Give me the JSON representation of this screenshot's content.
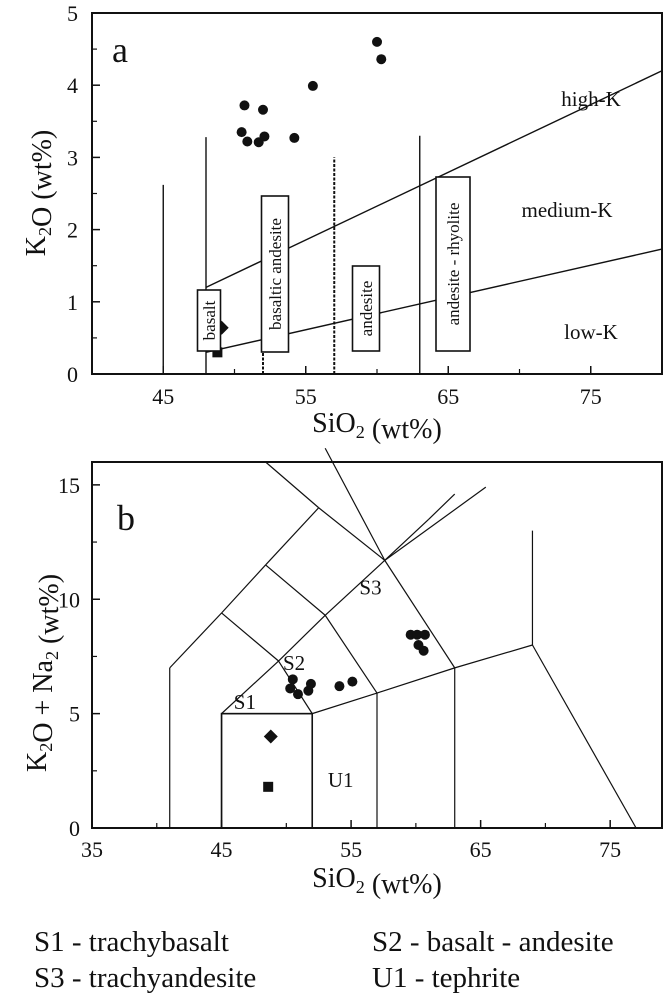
{
  "chart_data": [
    {
      "type": "scatter",
      "panel_label": "a",
      "xlabel": "SiO2 (wt%)",
      "ylabel": "K2O (wt%)",
      "xlim": [
        40,
        80
      ],
      "ylim": [
        0,
        5
      ],
      "xticks": [
        "45",
        "55",
        "65",
        "75"
      ],
      "yticks": [
        "0",
        "1",
        "2",
        "3",
        "4",
        "5"
      ],
      "field_labels": [
        "high-K",
        "medium-K",
        "low-K"
      ],
      "rock_boxes": [
        "basalt",
        "basaltic andesite",
        "andesite",
        "andesite - rhyolite"
      ],
      "points_circle": [
        {
          "x": 50.7,
          "y": 3.72
        },
        {
          "x": 52.0,
          "y": 3.66
        },
        {
          "x": 50.5,
          "y": 3.35
        },
        {
          "x": 50.9,
          "y": 3.22
        },
        {
          "x": 51.7,
          "y": 3.21
        },
        {
          "x": 52.1,
          "y": 3.29
        },
        {
          "x": 54.2,
          "y": 3.27
        },
        {
          "x": 55.5,
          "y": 3.99
        },
        {
          "x": 60.0,
          "y": 4.6
        },
        {
          "x": 60.3,
          "y": 4.36
        }
      ],
      "points_diamond": [
        {
          "x": 49.1,
          "y": 0.64
        }
      ],
      "points_square": [
        {
          "x": 48.8,
          "y": 0.3
        }
      ]
    },
    {
      "type": "scatter",
      "panel_label": "b",
      "xlabel": "SiO2 (wt%)",
      "ylabel": "K2O + Na2 (wt%)",
      "xlim": [
        35,
        79
      ],
      "ylim": [
        0,
        16
      ],
      "xticks": [
        "35",
        "45",
        "55",
        "65",
        "75"
      ],
      "yticks": [
        "0",
        "5",
        "10",
        "15"
      ],
      "field_labels": [
        "S1",
        "S2",
        "S3",
        "U1"
      ],
      "points_circle": [
        {
          "x": 50.5,
          "y": 6.5
        },
        {
          "x": 50.3,
          "y": 6.1
        },
        {
          "x": 50.9,
          "y": 5.85
        },
        {
          "x": 51.7,
          "y": 6.0
        },
        {
          "x": 51.9,
          "y": 6.3
        },
        {
          "x": 54.1,
          "y": 6.2
        },
        {
          "x": 55.1,
          "y": 6.4
        },
        {
          "x": 59.6,
          "y": 8.45
        },
        {
          "x": 60.1,
          "y": 8.45
        },
        {
          "x": 60.7,
          "y": 8.45
        },
        {
          "x": 60.2,
          "y": 8.0
        },
        {
          "x": 60.6,
          "y": 7.75
        }
      ],
      "points_diamond": [
        {
          "x": 48.8,
          "y": 4.0
        }
      ],
      "points_square": [
        {
          "x": 48.6,
          "y": 1.8
        }
      ]
    }
  ],
  "legend": {
    "s1": "S1 - trachybasalt",
    "s2": "S2 - basalt - andesite",
    "s3": "S3 - trachyandesite",
    "u1": "U1 - tephrite"
  }
}
